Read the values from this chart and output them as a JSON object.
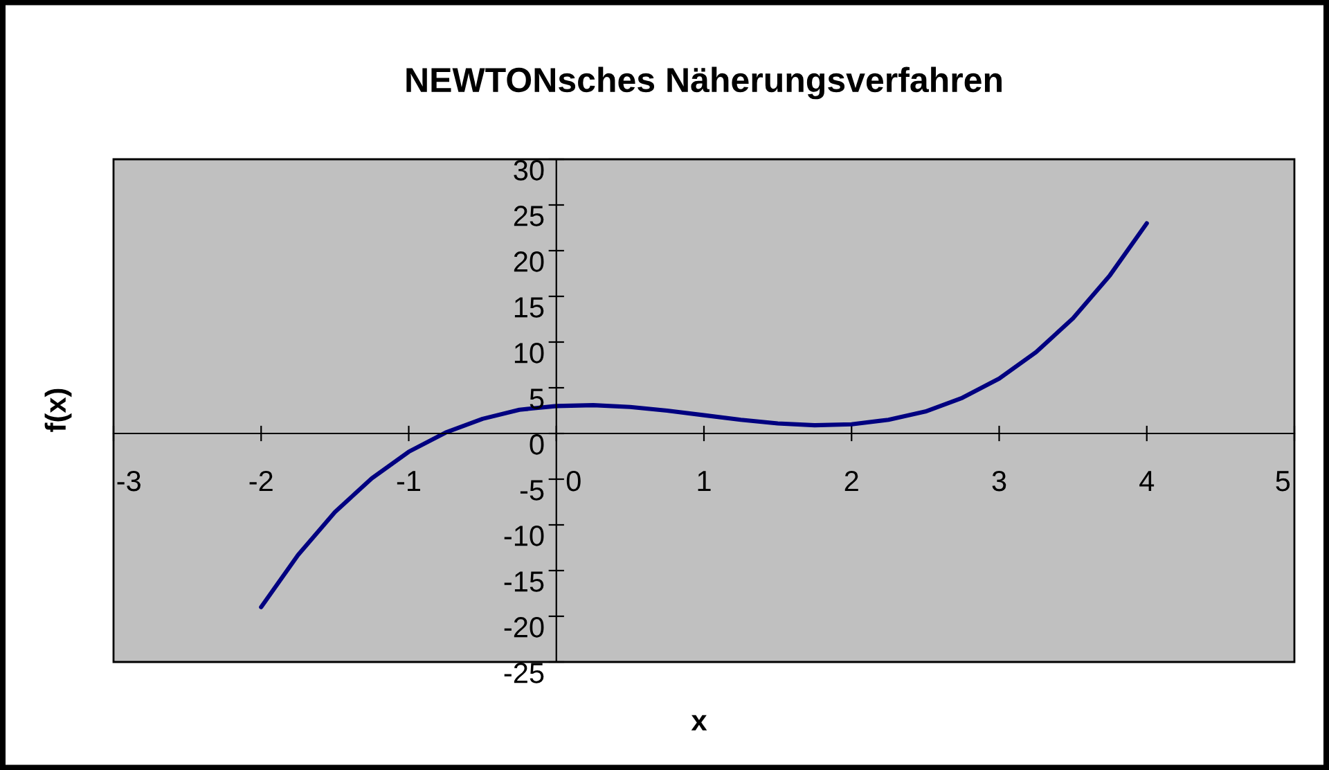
{
  "chart_data": {
    "type": "line",
    "title": "NEWTONsches Näherungsverfahren",
    "xlabel": "x",
    "ylabel": "f(x)",
    "x": [
      -2,
      -1.75,
      -1.5,
      -1.25,
      -1,
      -0.75,
      -0.5,
      -0.25,
      0,
      0.25,
      0.5,
      0.75,
      1,
      1.25,
      1.5,
      1.75,
      2,
      2.25,
      2.5,
      2.75,
      3,
      3.25,
      3.5,
      3.75,
      4
    ],
    "series": [
      {
        "color": "#000080",
        "values": [
          -19,
          -13.3,
          -8.6,
          -4.9,
          -2,
          0.1,
          1.6,
          2.6,
          3,
          3.1,
          2.9,
          2.5,
          2,
          1.5,
          1.1,
          0.9,
          1,
          1.5,
          2.4,
          3.9,
          6,
          8.9,
          12.6,
          17.3,
          23
        ]
      }
    ],
    "xlim": [
      -3,
      5
    ],
    "ylim": [
      -25,
      30
    ],
    "xticks": [
      -3,
      -2,
      -1,
      0,
      1,
      2,
      3,
      4,
      5
    ],
    "yticks": [
      -25,
      -20,
      -15,
      -10,
      -5,
      0,
      5,
      10,
      15,
      20,
      25,
      30
    ],
    "grid": false,
    "legend": false,
    "marker": "none",
    "line_style": "solid"
  }
}
